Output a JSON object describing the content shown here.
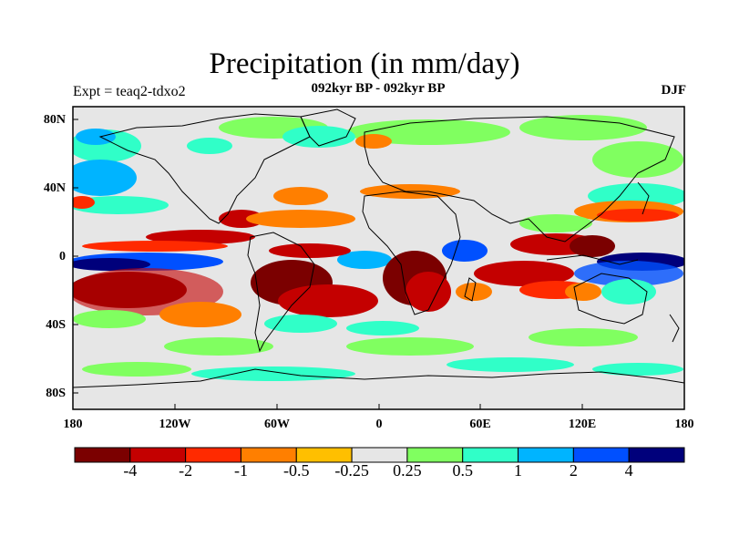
{
  "title": "Precipitation (in mm/day)",
  "subtitle": "092kyr BP - 092kyr BP",
  "experiment": "Expt = teaq2-tdxo2",
  "season": "DJF",
  "map": {
    "projection": "cylindrical equidistant",
    "lon_range": [
      -180,
      180
    ],
    "lat_range": [
      -90,
      90
    ],
    "y_ticks": [
      "80N",
      "40N",
      "0",
      "40S",
      "80S"
    ],
    "x_ticks": [
      "180",
      "120W",
      "60W",
      "0",
      "60E",
      "120E",
      "180"
    ],
    "missing_color": "#e6e6e6"
  },
  "colorbar": {
    "colors": [
      "#7b0000",
      "#c40000",
      "#ff2a00",
      "#ff7f00",
      "#ffbf00",
      "#e6e6e6",
      "#80ff60",
      "#30ffc8",
      "#00b4ff",
      "#0050ff",
      "#00007b"
    ],
    "labels": [
      "-4",
      "-2",
      "-1",
      "-0.5",
      "-0.25",
      "0.25",
      "0.5",
      "1",
      "2",
      "4"
    ]
  }
}
